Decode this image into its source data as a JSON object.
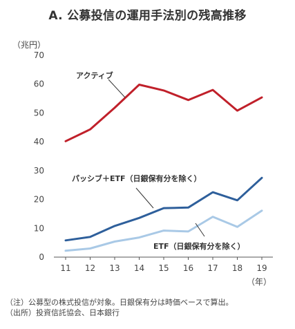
{
  "title": "A. 公募投信の運用手法別の残高推移",
  "chart_data": {
    "type": "line",
    "title": "A. 公募投信の運用手法別の残高推移",
    "ylabel": "（兆円）",
    "xlabel": "（年）",
    "x": [
      "11",
      "12",
      "13",
      "14",
      "15",
      "16",
      "17",
      "18",
      "19"
    ],
    "y_ticks": [
      "0",
      "10",
      "20",
      "30",
      "40",
      "50",
      "60",
      "70"
    ],
    "ylim": [
      0,
      70
    ],
    "grid": false,
    "series": [
      {
        "name": "アクティブ",
        "values": [
          40.2,
          44.3,
          51.8,
          59.8,
          57.8,
          54.5,
          58.0,
          50.8,
          55.4
        ],
        "color": "#c0202a"
      },
      {
        "name": "パッシブ＋ETF（日銀保有分を除く）",
        "values": [
          5.8,
          7.0,
          10.8,
          13.6,
          17.0,
          17.2,
          22.5,
          19.7,
          27.5
        ],
        "color": "#2e5f9b"
      },
      {
        "name": "ETF（日銀保有分を除く）",
        "values": [
          2.2,
          3.0,
          5.4,
          6.8,
          9.2,
          8.9,
          14.0,
          10.5,
          16.1
        ],
        "color": "#a9c9e6"
      }
    ]
  },
  "notes": [
    "（注）公募型の株式投信が対象。日銀保有分は時価ベースで算出。",
    "（出所）投資信託協会、日本銀行"
  ]
}
